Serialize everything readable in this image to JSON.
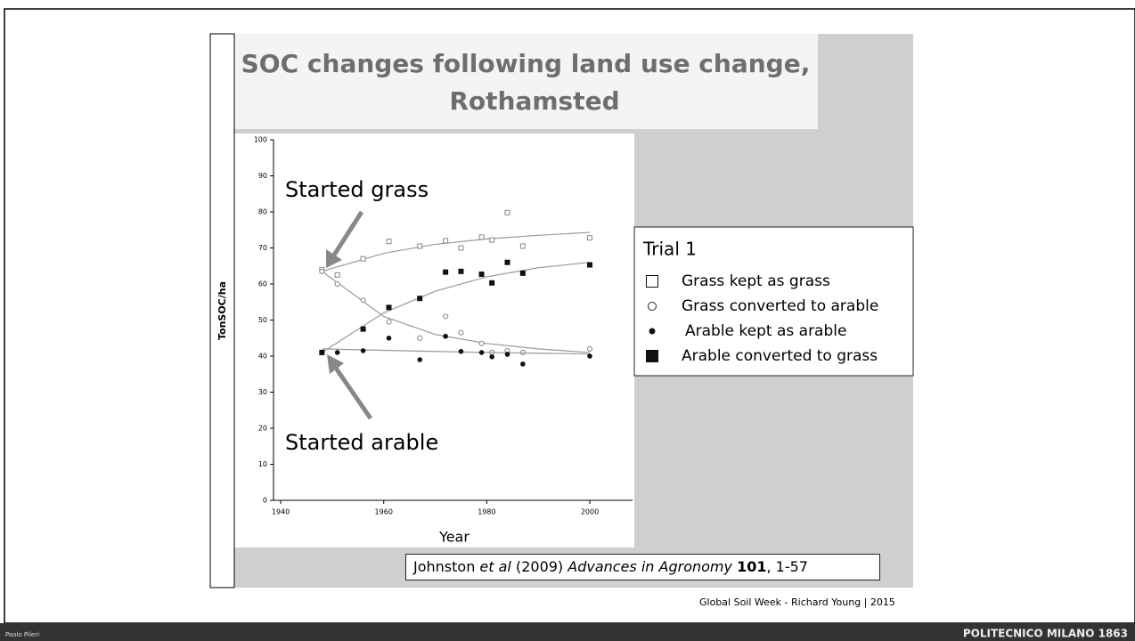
{
  "chart_data": {
    "type": "scatter",
    "title": [
      "SOC changes following land use change,",
      "Rothamsted"
    ],
    "xlabel": "Year",
    "ylabel": "TonSOC/ha",
    "annotations": [
      "Started grass",
      "Started arable"
    ],
    "legend_title": "Trial 1",
    "xlim": [
      1938.6,
      2008.3
    ],
    "xticks": [
      1940,
      1960,
      1980,
      2000
    ],
    "ylim": [
      0,
      100
    ],
    "yticks": [
      0,
      10,
      20,
      30,
      40,
      50,
      60,
      70,
      80,
      90,
      100
    ],
    "fit_x": [
      1948,
      1960,
      1970,
      1980,
      1990,
      2000
    ],
    "series": [
      {
        "name": "Grass kept as grass",
        "marker": "open-square",
        "color": "#888888",
        "x": [
          1948,
          1951,
          1956,
          1961,
          1967,
          1972,
          1975,
          1979,
          1981,
          1984,
          1987,
          2000
        ],
        "values": [
          64,
          62.5,
          67,
          71.8,
          70.5,
          72,
          70,
          73,
          72.2,
          79.8,
          70.5,
          72.8
        ],
        "fit": [
          63.5,
          68.5,
          71,
          72.5,
          73.5,
          74.3
        ]
      },
      {
        "name": "Grass converted to arable",
        "marker": "open-circle",
        "color": "#888888",
        "x": [
          1948,
          1951,
          1956,
          1961,
          1967,
          1972,
          1975,
          1979,
          1981,
          1984,
          1987,
          2000
        ],
        "values": [
          63.5,
          60,
          55.5,
          49.5,
          45,
          51,
          46.5,
          43.5,
          41,
          41.5,
          41,
          42
        ],
        "fit": [
          63.5,
          51,
          46,
          43.5,
          42,
          41
        ]
      },
      {
        "name": "Arable kept as arable",
        "marker": "dot",
        "color": "#111111",
        "x": [
          1948,
          1951,
          1956,
          1961,
          1967,
          1972,
          1975,
          1979,
          1981,
          1984,
          1987,
          2000
        ],
        "values": [
          41,
          41,
          41.5,
          45,
          39,
          45.5,
          41.3,
          41,
          39.8,
          40.5,
          37.8,
          40
        ],
        "fit": [
          42,
          41.6,
          41.3,
          41,
          40.8,
          40.6
        ]
      },
      {
        "name": "Arable converted to grass",
        "marker": "filled-square",
        "color": "#111111",
        "x": [
          1948,
          1956,
          1961,
          1967,
          1972,
          1975,
          1979,
          1981,
          1984,
          1987,
          2000
        ],
        "values": [
          41,
          47.5,
          53.5,
          56,
          63.3,
          63.5,
          62.7,
          60.3,
          66,
          63,
          65.3
        ],
        "fit": [
          41,
          52,
          58,
          62,
          64.5,
          66
        ]
      }
    ]
  },
  "citation": {
    "author": "Johnston",
    "etal": "et al",
    "year": "(2009)",
    "journal": "Advances in Agronomy",
    "volume": "101",
    "pages": ", 1-57"
  },
  "footer": {
    "credit": "Global Soil Week - Richard Young | 2015",
    "presenter": "Paolo Pileri",
    "institution": "POLITECNICO MILANO 1863"
  }
}
